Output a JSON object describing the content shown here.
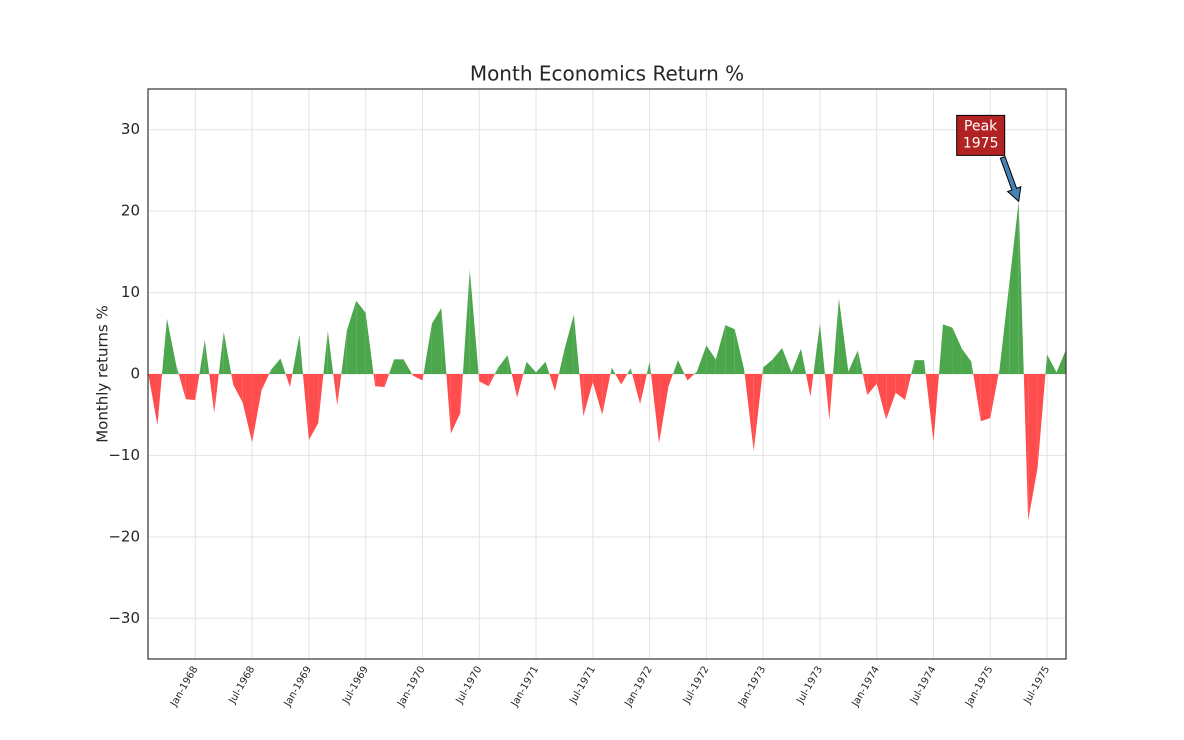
{
  "chart_data": {
    "type": "area",
    "title": "Month Economics Return %",
    "y_label": "Monthly returns %",
    "positive_color": "#4ca64c",
    "negative_color": "#ff4c4c",
    "grid": true,
    "x": [
      "1967-08",
      "1967-09",
      "1967-10",
      "1967-11",
      "1967-12",
      "1968-01",
      "1968-02",
      "1968-03",
      "1968-04",
      "1968-05",
      "1968-06",
      "1968-07",
      "1968-08",
      "1968-09",
      "1968-10",
      "1968-11",
      "1968-12",
      "1969-01",
      "1969-02",
      "1969-03",
      "1969-04",
      "1969-05",
      "1969-06",
      "1969-07",
      "1969-08",
      "1969-09",
      "1969-10",
      "1969-11",
      "1969-12",
      "1970-01",
      "1970-02",
      "1970-03",
      "1970-04",
      "1970-05",
      "1970-06",
      "1970-07",
      "1970-08",
      "1970-09",
      "1970-10",
      "1970-11",
      "1970-12",
      "1971-01",
      "1971-02",
      "1971-03",
      "1971-04",
      "1971-05",
      "1971-06",
      "1971-07",
      "1971-08",
      "1971-09",
      "1971-10",
      "1971-11",
      "1971-12",
      "1972-01",
      "1972-02",
      "1972-03",
      "1972-04",
      "1972-05",
      "1972-06",
      "1972-07",
      "1972-08",
      "1972-09",
      "1972-10",
      "1972-11",
      "1972-12",
      "1973-01",
      "1973-02",
      "1973-03",
      "1973-04",
      "1973-05",
      "1973-06",
      "1973-07",
      "1973-08",
      "1973-09",
      "1973-10",
      "1973-11",
      "1973-12",
      "1974-01",
      "1974-02",
      "1974-03",
      "1974-04",
      "1974-05",
      "1974-06",
      "1974-07",
      "1974-08",
      "1974-09",
      "1974-10",
      "1974-11",
      "1974-12",
      "1975-01",
      "1975-02",
      "1975-03",
      "1975-04",
      "1975-05",
      "1975-06",
      "1975-07",
      "1975-08",
      "1975-09"
    ],
    "values": [
      0.2,
      -6.3,
      6.8,
      1.0,
      -3.1,
      -3.2,
      4.2,
      -4.8,
      5.2,
      -1.3,
      -3.5,
      -8.4,
      -2.0,
      0.5,
      1.9,
      -1.6,
      4.8,
      -8.1,
      -6.0,
      5.3,
      -3.9,
      5.3,
      9.0,
      7.5,
      -1.5,
      -1.6,
      1.8,
      1.8,
      -0.2,
      -0.8,
      6.2,
      8.1,
      -7.3,
      -4.8,
      12.8,
      -0.9,
      -1.5,
      0.8,
      2.3,
      -2.9,
      1.5,
      0.2,
      1.5,
      -2.1,
      3.0,
      7.3,
      -5.2,
      -1.0,
      -5.0,
      0.8,
      -1.3,
      0.7,
      -3.7,
      1.5,
      -8.5,
      -1.5,
      1.7,
      -0.8,
      0.3,
      3.5,
      1.8,
      6.0,
      5.5,
      0.5,
      -9.5,
      0.8,
      1.8,
      3.2,
      0.2,
      3.1,
      -2.8,
      6.2,
      -5.7,
      9.3,
      0.3,
      2.9,
      -2.6,
      -1.2,
      -5.6,
      -2.3,
      -3.2,
      1.7,
      1.7,
      -8.3,
      6.1,
      5.7,
      3.1,
      1.5,
      -5.8,
      -5.4,
      0.8,
      11.0,
      21.2,
      -18.0,
      -11.5,
      2.4,
      0.2,
      3.0
    ],
    "xlim": [
      "1967-08",
      "1975-09"
    ],
    "xticks": [
      {
        "value": "1968-01",
        "label": "Jan-1968"
      },
      {
        "value": "1968-07",
        "label": "Jul-1968"
      },
      {
        "value": "1969-01",
        "label": "Jan-1969"
      },
      {
        "value": "1969-07",
        "label": "Jul-1969"
      },
      {
        "value": "1970-01",
        "label": "Jan-1970"
      },
      {
        "value": "1970-07",
        "label": "Jul-1970"
      },
      {
        "value": "1971-01",
        "label": "Jan-1971"
      },
      {
        "value": "1971-07",
        "label": "Jul-1971"
      },
      {
        "value": "1972-01",
        "label": "Jan-1972"
      },
      {
        "value": "1972-07",
        "label": "Jul-1972"
      },
      {
        "value": "1973-01",
        "label": "Jan-1973"
      },
      {
        "value": "1973-07",
        "label": "Jul-1973"
      },
      {
        "value": "1974-01",
        "label": "Jan-1974"
      },
      {
        "value": "1974-07",
        "label": "Jul-1974"
      },
      {
        "value": "1975-01",
        "label": "Jan-1975"
      },
      {
        "value": "1975-07",
        "label": "Jul-1975"
      }
    ],
    "ylim": [
      -35,
      35
    ],
    "yticks": [
      {
        "value": -30,
        "label": "−30"
      },
      {
        "value": -20,
        "label": "−20"
      },
      {
        "value": -10,
        "label": "−10"
      },
      0,
      10,
      20,
      30
    ],
    "annotation": {
      "lines": [
        "Peak",
        "1975"
      ],
      "color": "#b22222",
      "arrow_color": "#4682b4"
    }
  }
}
